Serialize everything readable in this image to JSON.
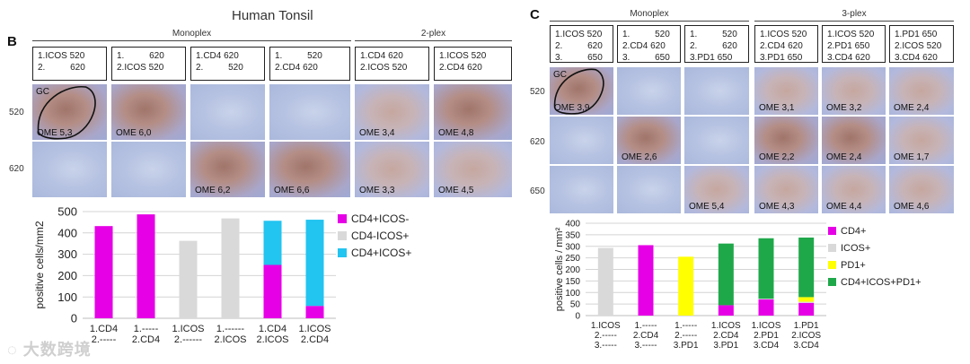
{
  "figure_title": "Human Tonsil",
  "panelB": {
    "letter": "B",
    "groups": [
      {
        "label": "Monoplex"
      },
      {
        "label": "2-plex"
      }
    ],
    "headers": [
      {
        "text": "1.ICOS 520\n2.          620"
      },
      {
        "text": "1.          620\n2.ICOS 520"
      },
      {
        "text": "1.CD4 620\n2.          520"
      },
      {
        "text": "1.          520\n2.CD4 620"
      },
      {
        "text": "1.CD4 620\n2.ICOS 520"
      },
      {
        "text": "1.ICOS 520\n2.CD4 620"
      }
    ],
    "row_labels": [
      "520",
      "620"
    ],
    "tiles_row1": [
      {
        "ome": "OME 5,3",
        "gc": "GC",
        "tone": "brown"
      },
      {
        "ome": "OME 6,0",
        "gc": "",
        "tone": "brown"
      },
      {
        "ome": "",
        "gc": "",
        "tone": "blue"
      },
      {
        "ome": "",
        "gc": "",
        "tone": "blue"
      },
      {
        "ome": "OME 3,4",
        "gc": "",
        "tone": "light-brown"
      },
      {
        "ome": "OME 4,8",
        "gc": "",
        "tone": "brown"
      }
    ],
    "tiles_row2": [
      {
        "ome": "",
        "gc": "",
        "tone": "blue"
      },
      {
        "ome": "",
        "gc": "",
        "tone": "blue"
      },
      {
        "ome": "OME 6,2",
        "gc": "",
        "tone": "brown"
      },
      {
        "ome": "OME 6,6",
        "gc": "",
        "tone": "brown"
      },
      {
        "ome": "OME 3,3",
        "gc": "",
        "tone": "light-brown"
      },
      {
        "ome": "OME 4,5",
        "gc": "",
        "tone": "light-brown"
      }
    ]
  },
  "panelC": {
    "letter": "C",
    "groups": [
      {
        "label": "Monoplex"
      },
      {
        "label": "3-plex"
      }
    ],
    "headers": [
      {
        "text": "1.ICOS 520\n2.          620\n3.          650"
      },
      {
        "text": "1.          520\n2.CD4 620\n3.          650"
      },
      {
        "text": "1.          520\n2.          620\n3.PD1 650"
      },
      {
        "text": "1.ICOS 520\n2.CD4 620\n3.PD1 650"
      },
      {
        "text": "1.ICOS 520\n2.PD1 650\n3.CD4 620"
      },
      {
        "text": "1.PD1 650\n2.ICOS 520\n3.CD4 620"
      }
    ],
    "row_labels": [
      "520",
      "620",
      "650"
    ],
    "tiles_row1": [
      {
        "ome": "OME 3,9",
        "gc": "GC",
        "tone": "brown"
      },
      {
        "ome": "",
        "gc": "",
        "tone": "blue"
      },
      {
        "ome": "",
        "gc": "",
        "tone": "blue"
      },
      {
        "ome": "OME 3,1",
        "gc": "",
        "tone": "light-brown"
      },
      {
        "ome": "OME 3,2",
        "gc": "",
        "tone": "light-brown"
      },
      {
        "ome": "OME 2,4",
        "gc": "",
        "tone": "light-brown"
      }
    ],
    "tiles_row2": [
      {
        "ome": "",
        "gc": "",
        "tone": "blue"
      },
      {
        "ome": "OME 2,6",
        "gc": "",
        "tone": "brown"
      },
      {
        "ome": "",
        "gc": "",
        "tone": "blue"
      },
      {
        "ome": "OME 2,2",
        "gc": "",
        "tone": "brown"
      },
      {
        "ome": "OME 2,4",
        "gc": "",
        "tone": "brown"
      },
      {
        "ome": "OME 1,7",
        "gc": "",
        "tone": "light-brown"
      }
    ],
    "tiles_row3": [
      {
        "ome": "",
        "gc": "",
        "tone": "blue"
      },
      {
        "ome": "",
        "gc": "",
        "tone": "blue"
      },
      {
        "ome": "OME 5,4",
        "gc": "",
        "tone": "light-brown"
      },
      {
        "ome": "OME 4,3",
        "gc": "",
        "tone": "light-brown"
      },
      {
        "ome": "OME 4,4",
        "gc": "",
        "tone": "light-brown"
      },
      {
        "ome": "OME 4,6",
        "gc": "",
        "tone": "light-brown"
      }
    ]
  },
  "chart_data": [
    {
      "type": "bar",
      "stacked": true,
      "ylabel": "positive cells/mm2",
      "ylim": [
        0,
        500
      ],
      "yticks": [
        0,
        100,
        200,
        300,
        400,
        500
      ],
      "grid": true,
      "legend_position": "right",
      "categories": [
        [
          "1.CD4",
          "2.-----"
        ],
        [
          "1.-----",
          "2.CD4"
        ],
        [
          "1.ICOS",
          "2.------"
        ],
        [
          "1.------",
          "2.ICOS"
        ],
        [
          "1.CD4",
          "2.ICOS"
        ],
        [
          "1.ICOS",
          "2.CD4"
        ]
      ],
      "series": [
        {
          "name": "CD4+ICOS-",
          "color": "#e600e6",
          "values": [
            432,
            487,
            0,
            0,
            250,
            58
          ]
        },
        {
          "name": "CD4-ICOS+",
          "color": "#d9d9d9",
          "values": [
            0,
            0,
            363,
            468,
            0,
            0
          ]
        },
        {
          "name": "CD4+ICOS+",
          "color": "#22c4f0",
          "values": [
            0,
            0,
            0,
            0,
            207,
            404
          ]
        }
      ]
    },
    {
      "type": "bar",
      "stacked": true,
      "ylabel": "positive cells / mm²",
      "ylim": [
        0,
        400
      ],
      "yticks": [
        0,
        50,
        100,
        150,
        200,
        250,
        300,
        350,
        400
      ],
      "grid": true,
      "legend_position": "right",
      "categories": [
        [
          "1.ICOS",
          "2.-----",
          "3.-----"
        ],
        [
          "1.-----",
          "2.CD4",
          "3.-----"
        ],
        [
          "1.-----",
          "2.-----",
          "3.PD1"
        ],
        [
          "1.ICOS",
          "2.CD4",
          "3.PD1"
        ],
        [
          "1.ICOS",
          "2.PD1",
          "3.CD4"
        ],
        [
          "1.PD1",
          "2.ICOS",
          "3.CD4"
        ]
      ],
      "series": [
        {
          "name": "CD4+",
          "color": "#e600e6",
          "values": [
            0,
            305,
            0,
            45,
            70,
            55
          ]
        },
        {
          "name": "ICOS+",
          "color": "#d9d9d9",
          "values": [
            293,
            0,
            0,
            0,
            3,
            5
          ]
        },
        {
          "name": "PD1+",
          "color": "#ffff00",
          "values": [
            0,
            0,
            255,
            0,
            0,
            20
          ]
        },
        {
          "name": "CD4+ICOS+PD1+",
          "color": "#1fa84a",
          "values": [
            0,
            0,
            0,
            267,
            262,
            258
          ]
        }
      ]
    }
  ]
}
